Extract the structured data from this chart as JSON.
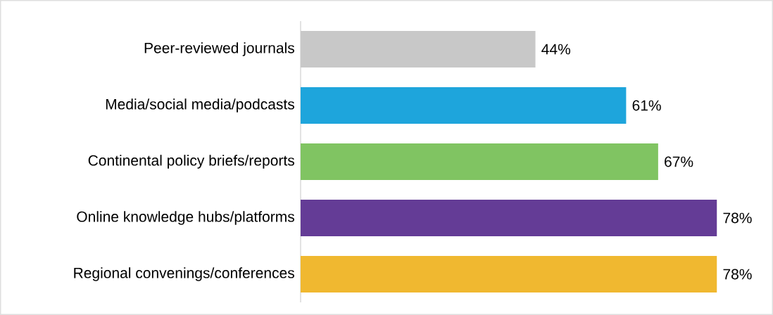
{
  "chart_data": {
    "type": "bar",
    "orientation": "horizontal",
    "categories": [
      "Peer-reviewed journals",
      "Media/social media/podcasts",
      "Continental policy briefs/reports",
      "Online knowledge hubs/platforms",
      "Regional convenings/conferences"
    ],
    "values": [
      44,
      61,
      67,
      78,
      78
    ],
    "value_labels": [
      "44%",
      "61%",
      "67%",
      "78%",
      "78%"
    ],
    "colors": [
      "#c8c8c8",
      "#1ea5dc",
      "#80c462",
      "#643c96",
      "#f0b830"
    ]
  }
}
